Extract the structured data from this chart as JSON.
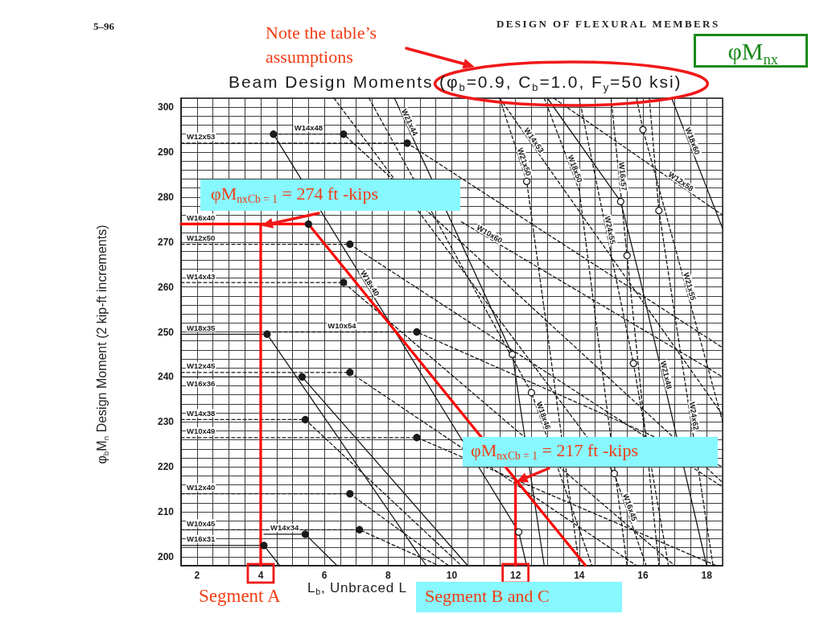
{
  "chart_data": {
    "type": "line",
    "title": "Beam Design Moments (φ$_{b}$=0.9, C$_{b}$=1.0, F$_{y}$=50 ksi)",
    "xlabel": "L$_{b}$, Unbraced L",
    "ylabel": "φ$_{b}$M$_{n}$ Design Moment (2 kip-ft increments)",
    "annotations": [
      "5–96",
      "DESIGN OF FLEXURAL MEMBERS",
      "Note the table’s assumptions",
      "φM$_{nx}$",
      {
        "text": "φM$_{nxCb = 1}$ = 274 ft -kips",
        "x": 4,
        "y": 274
      },
      {
        "text": "φM$_{nxCb = 1}$ = 217 ft -kips",
        "x": 12,
        "y": 217
      },
      "Segment A",
      "Segment B and C"
    ],
    "xlim": [
      1.5,
      18.5
    ],
    "ylim": [
      198,
      302
    ],
    "xticks": [
      {
        "value": 1.5,
        "label": null
      },
      2,
      {
        "value": 2.5,
        "label": null
      },
      {
        "value": 3,
        "label": null
      },
      {
        "value": 3.5,
        "label": null
      },
      4,
      {
        "value": 4.5,
        "label": null
      },
      {
        "value": 5,
        "label": null
      },
      {
        "value": 5.5,
        "label": null
      },
      6,
      {
        "value": 6.5,
        "label": null
      },
      {
        "value": 7,
        "label": null
      },
      {
        "value": 7.5,
        "label": null
      },
      8,
      {
        "value": 8.5,
        "label": null
      },
      {
        "value": 9,
        "label": null
      },
      {
        "value": 9.5,
        "label": null
      },
      10,
      {
        "value": 10.5,
        "label": null
      },
      {
        "value": 11,
        "label": null
      },
      {
        "value": 11.5,
        "label": null
      },
      12,
      {
        "value": 12.5,
        "label": null
      },
      {
        "value": 13,
        "label": null
      },
      {
        "value": 13.5,
        "label": null
      },
      14,
      {
        "value": 14.5,
        "label": null
      },
      {
        "value": 15,
        "label": null
      },
      {
        "value": 15.5,
        "label": null
      },
      16,
      {
        "value": 16.5,
        "label": null
      },
      {
        "value": 17,
        "label": null
      },
      {
        "value": 17.5,
        "label": null
      },
      18,
      {
        "value": 18.5,
        "label": null
      }
    ],
    "yticks": [
      {
        "value": 198,
        "label": null
      },
      200,
      {
        "value": 202,
        "label": null
      },
      {
        "value": 204,
        "label": null
      },
      {
        "value": 206,
        "label": null
      },
      {
        "value": 208,
        "label": null
      },
      210,
      {
        "value": 212,
        "label": null
      },
      {
        "value": 214,
        "label": null
      },
      {
        "value": 216,
        "label": null
      },
      {
        "value": 218,
        "label": null
      },
      220,
      {
        "value": 222,
        "label": null
      },
      {
        "value": 224,
        "label": null
      },
      {
        "value": 226,
        "label": null
      },
      {
        "value": 228,
        "label": null
      },
      230,
      {
        "value": 232,
        "label": null
      },
      {
        "value": 234,
        "label": null
      },
      {
        "value": 236,
        "label": null
      },
      {
        "value": 238,
        "label": null
      },
      240,
      {
        "value": 242,
        "label": null
      },
      {
        "value": 244,
        "label": null
      },
      {
        "value": 246,
        "label": null
      },
      {
        "value": 248,
        "label": null
      },
      250,
      {
        "value": 252,
        "label": null
      },
      {
        "value": 254,
        "label": null
      },
      {
        "value": 256,
        "label": null
      },
      {
        "value": 258,
        "label": null
      },
      260,
      {
        "value": 262,
        "label": null
      },
      {
        "value": 264,
        "label": null
      },
      {
        "value": 266,
        "label": null
      },
      {
        "value": 268,
        "label": null
      },
      270,
      {
        "value": 272,
        "label": null
      },
      {
        "value": 274,
        "label": null
      },
      {
        "value": 276,
        "label": null
      },
      {
        "value": 278,
        "label": null
      },
      280,
      {
        "value": 282,
        "label": null
      },
      {
        "value": 284,
        "label": null
      },
      {
        "value": 286,
        "label": null
      },
      {
        "value": 288,
        "label": null
      },
      290,
      {
        "value": 292,
        "label": null
      },
      {
        "value": 294,
        "label": null
      },
      {
        "value": 296,
        "label": null
      },
      {
        "value": 298,
        "label": null
      },
      300,
      {
        "value": 302,
        "label": null
      }
    ],
    "grid": true,
    "marker": "none",
    "series": [
      {
        "name": "W12x53",
        "color": "#1a1a1a",
        "line_style": "dashed",
        "x": [
          1.5,
          8.6,
          18.5
        ],
        "values": [
          292,
          292,
          246.5
        ]
      },
      {
        "name": "W14x48",
        "color": "#1a1a1a",
        "line_style": "dashed",
        "x": [
          4.4,
          6.6,
          18.5
        ],
        "values": [
          294,
          294,
          216.5
        ]
      },
      {
        "name": "W18x40",
        "color": "#1a1a1a",
        "line_style": "solid",
        "x": [
          4.4,
          12.1,
          12.35
        ],
        "values": [
          294,
          205.5,
          198
        ]
      },
      {
        "name": "W12x50",
        "color": "#1a1a1a",
        "line_style": "dashed",
        "x": [
          1.5,
          6.8,
          18.5
        ],
        "values": [
          269.5,
          269.5,
          215.5
        ]
      },
      {
        "name": "W14x43",
        "color": "#1a1a1a",
        "line_style": "dashed",
        "x": [
          1.5,
          6.6,
          17
        ],
        "values": [
          261,
          261,
          198
        ]
      },
      {
        "name": "W10x54",
        "color": "#1a1a1a",
        "line_style": "dashed",
        "x": [
          4.2,
          8.9,
          18.5
        ],
        "values": [
          250,
          250,
          220
        ]
      },
      {
        "name": "W18x35",
        "color": "#1a1a1a",
        "line_style": "solid",
        "x": [
          1.5,
          4.2,
          9.2
        ],
        "values": [
          249.5,
          249.5,
          198
        ]
      },
      {
        "name": "W12x45",
        "color": "#1a1a1a",
        "line_style": "dashed",
        "x": [
          1.5,
          6.8,
          15.8
        ],
        "values": [
          241,
          241,
          198
        ]
      },
      {
        "name": "W16x36",
        "color": "#1a1a1a",
        "line_style": "solid",
        "x": [
          1.5,
          5.3,
          10.5
        ],
        "values": [
          240,
          240,
          198
        ]
      },
      {
        "name": "W14x38",
        "color": "#1a1a1a",
        "line_style": "dashed",
        "x": [
          1.5,
          5.4,
          10.3
        ],
        "values": [
          230.5,
          230.5,
          198
        ]
      },
      {
        "name": "W10x49",
        "color": "#1a1a1a",
        "line_style": "dashed",
        "x": [
          1.5,
          8.9,
          18.3
        ],
        "values": [
          226.5,
          226.5,
          198
        ]
      },
      {
        "name": "W12x40",
        "color": "#1a1a1a",
        "line_style": "dashed",
        "x": [
          1.5,
          6.8,
          9.9
        ],
        "values": [
          214,
          214,
          198
        ]
      },
      {
        "name": "W10x45",
        "color": "#1a1a1a",
        "line_style": "dashed",
        "x": [
          1.5,
          7.1,
          9.6
        ],
        "values": [
          206,
          206,
          198
        ]
      },
      {
        "name": "W14x34",
        "color": "#1a1a1a",
        "line_style": "solid",
        "x": [
          4.1,
          5.4,
          6.4
        ],
        "values": [
          205,
          205,
          198
        ]
      },
      {
        "name": "W16x31",
        "color": "#1a1a1a",
        "line_style": "solid",
        "x": [
          1.5,
          4.1,
          4.6
        ],
        "values": [
          202.5,
          202.5,
          198
        ]
      },
      {
        "name": "W16x45",
        "color": "#1a1a1a",
        "line_style": "dashed",
        "x": [
          6.3,
          15.1,
          16.1
        ],
        "values": [
          302,
          218.5,
          198
        ]
      },
      {
        "name": "W18x46",
        "color": "#1a1a1a",
        "line_style": "dashed",
        "x": [
          7.4,
          12.5,
          14.4
        ],
        "values": [
          302,
          236.5,
          198
        ]
      },
      {
        "name": "W21x44",
        "color": "#1a1a1a",
        "line_style": "solid",
        "x": [
          8.2,
          11.9,
          12.9
        ],
        "values": [
          302,
          245,
          198
        ]
      },
      {
        "name": "W14x53",
        "color": "#1a1a1a",
        "line_style": "dashed",
        "x": [
          11.5,
          18.5
        ],
        "values": [
          302,
          231.5
        ]
      },
      {
        "name": "W10x60",
        "color": "#1a1a1a",
        "line_style": "dashed",
        "x": [
          10.3,
          18.5
        ],
        "values": [
          274.5,
          240
        ]
      },
      {
        "name": "W21x50",
        "color": "#1a1a1a",
        "line_style": "dashed",
        "x": [
          11.5,
          12.35,
          14
        ],
        "values": [
          302,
          283.5,
          198
        ]
      },
      {
        "name": "W18x50",
        "color": "#1a1a1a",
        "line_style": "dashed",
        "x": [
          12.9,
          14,
          15.5
        ],
        "values": [
          302,
          281.5,
          198
        ]
      },
      {
        "name": "W21x48",
        "color": "#1a1a1a",
        "line_style": "solid",
        "x": [
          13,
          15.3,
          15.9,
          18
        ],
        "values": [
          302,
          279,
          262,
          198
        ]
      },
      {
        "name": "W12x58",
        "color": "#1a1a1a",
        "line_style": "dashed",
        "x": [
          13.2,
          18.5
        ],
        "values": [
          302,
          276
        ]
      },
      {
        "name": "W18x60",
        "color": "#1a1a1a",
        "line_style": "solid",
        "x": [
          16.9,
          18.5
        ],
        "values": [
          302,
          273
        ]
      },
      {
        "name": "W24x55",
        "color": "#1a1a1a",
        "line_style": "dashed",
        "x": [
          14,
          15.7,
          16.8
        ],
        "values": [
          302,
          243,
          198
        ]
      },
      {
        "name": "W21x55",
        "color": "#1a1a1a",
        "line_style": "dashed",
        "x": [
          15.8,
          16,
          18.5
        ],
        "values": [
          302,
          295,
          230
        ]
      },
      {
        "name": "W24x62",
        "color": "#1a1a1a",
        "line_style": "dashed",
        "x": [
          16.2,
          16.5,
          18.2
        ],
        "values": [
          302,
          277,
          198
        ]
      },
      {
        "name": "W16x57",
        "color": "#1a1a1a",
        "line_style": "dashed",
        "x": [
          15,
          15.5,
          16.5
        ],
        "values": [
          302,
          267,
          198
        ]
      },
      {
        "name": "W16x40",
        "color": "#ff0000",
        "line_style": "solid",
        "x": [
          1.5,
          5.5,
          14.2
        ],
        "values": [
          274,
          274,
          198
        ]
      },
      {
        "color": "#ff0000",
        "line_style": "solid",
        "x": [
          4,
          4
        ],
        "values": [
          274,
          198
        ]
      },
      {
        "color": "#ff0000",
        "line_style": "solid",
        "x": [
          12,
          12
        ],
        "values": [
          217,
          198
        ]
      },
      {
        "type": "scatter",
        "marker": "circle",
        "color": "#1a1a1a",
        "x": [
          4.4,
          6.6,
          8.6,
          6.8,
          6.6,
          4.2,
          8.9,
          6.8,
          5.3,
          5.4,
          8.9,
          6.8,
          7.1,
          4.1,
          5.4,
          5.5
        ],
        "values": [
          294,
          294,
          292,
          269.5,
          261,
          249.5,
          250,
          241,
          240,
          230.5,
          226.5,
          214,
          206,
          202.5,
          205,
          274
        ]
      },
      {
        "type": "scatter",
        "marker": "circle",
        "color": "#ffffff",
        "x": [
          12.35,
          16,
          15.3,
          16.5,
          15.5,
          11.9,
          12.5,
          15.1,
          12.1,
          15.7
        ],
        "values": [
          283.5,
          295,
          279,
          277,
          267,
          245,
          236.5,
          218.5,
          205.5,
          243
        ]
      }
    ]
  }
}
